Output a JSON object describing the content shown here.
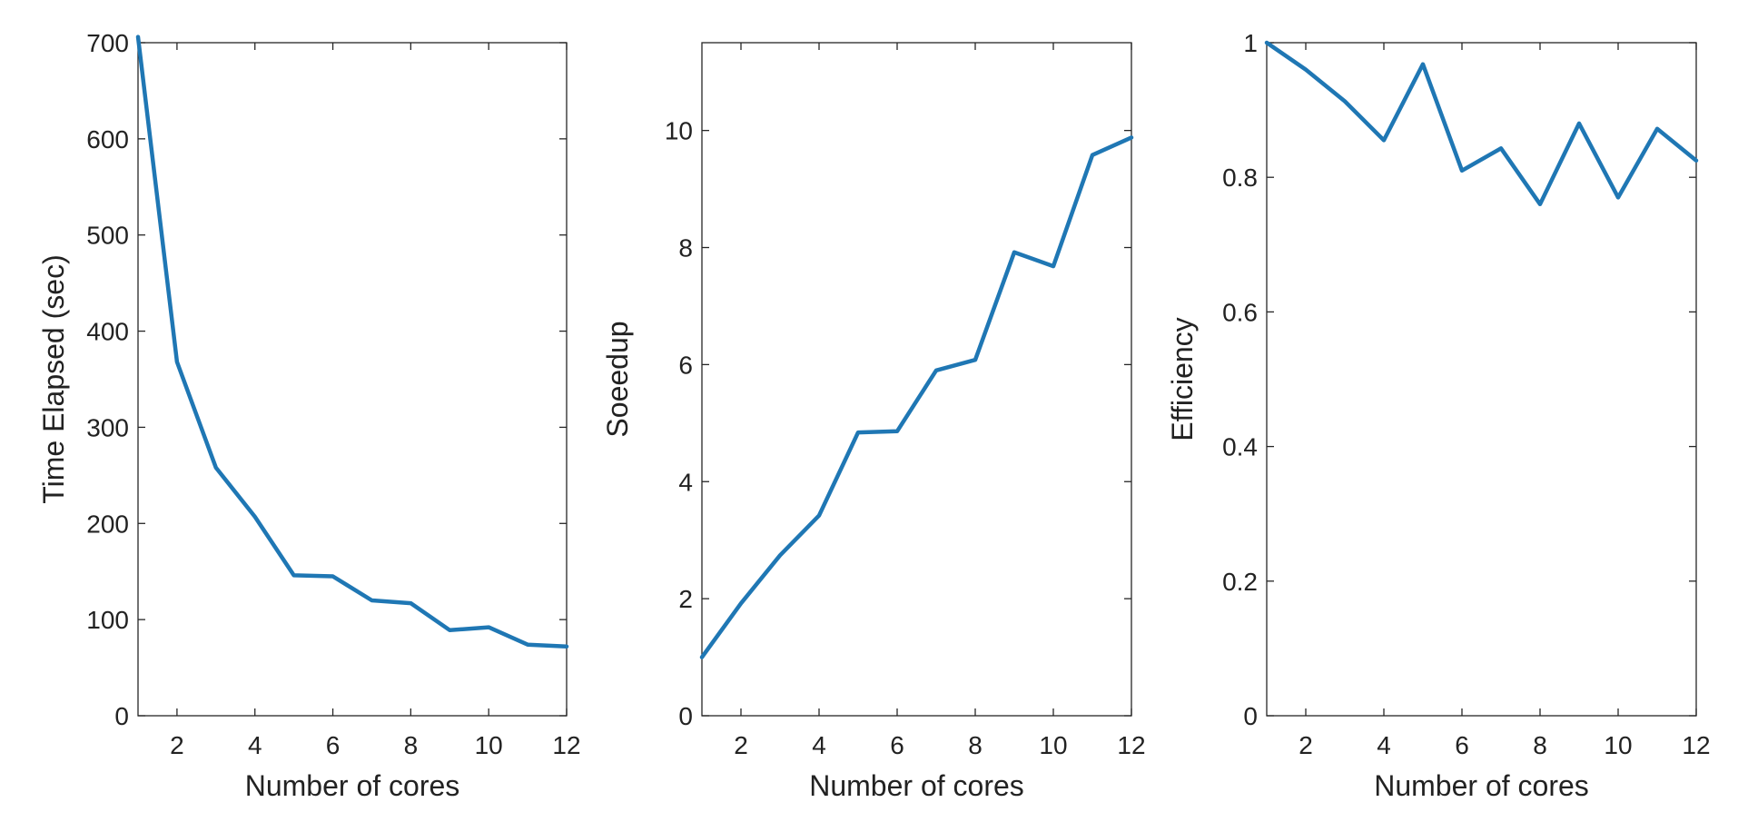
{
  "chart_data": [
    {
      "type": "line",
      "xlabel": "Number of cores",
      "ylabel": "Time Elapsed (sec)",
      "xlim": [
        1,
        12
      ],
      "ylim": [
        0,
        700
      ],
      "xticks": [
        2,
        4,
        6,
        8,
        10,
        12
      ],
      "yticks": [
        0,
        100,
        200,
        300,
        400,
        500,
        600,
        700
      ],
      "grid": false,
      "line_color": "#1f77b4",
      "x": [
        1,
        2,
        3,
        4,
        5,
        6,
        7,
        8,
        9,
        10,
        11,
        12
      ],
      "values": [
        706,
        368,
        258,
        207,
        146,
        145,
        120,
        117,
        89,
        92,
        74,
        72
      ]
    },
    {
      "type": "line",
      "xlabel": "Number of cores",
      "ylabel": "Soeedup",
      "xlim": [
        1,
        12
      ],
      "ylim": [
        0,
        11.5
      ],
      "xticks": [
        2,
        4,
        6,
        8,
        10,
        12
      ],
      "yticks": [
        0,
        2,
        4,
        6,
        8,
        10
      ],
      "grid": false,
      "line_color": "#1f77b4",
      "x": [
        1,
        2,
        3,
        4,
        5,
        6,
        7,
        8,
        9,
        10,
        11,
        12
      ],
      "values": [
        1.0,
        1.92,
        2.74,
        3.42,
        4.84,
        4.86,
        5.9,
        6.08,
        7.92,
        7.68,
        9.58,
        9.88
      ]
    },
    {
      "type": "line",
      "xlabel": "Number of cores",
      "ylabel": "Efficiency",
      "xlim": [
        1,
        12
      ],
      "ylim": [
        0,
        1
      ],
      "xticks": [
        2,
        4,
        6,
        8,
        10,
        12
      ],
      "yticks": [
        0,
        0.2,
        0.4,
        0.6,
        0.8,
        1
      ],
      "grid": false,
      "line_color": "#1f77b4",
      "x": [
        1,
        2,
        3,
        4,
        5,
        6,
        7,
        8,
        9,
        10,
        11,
        12
      ],
      "values": [
        1.0,
        0.96,
        0.913,
        0.855,
        0.968,
        0.81,
        0.843,
        0.76,
        0.88,
        0.77,
        0.872,
        0.825
      ]
    }
  ]
}
